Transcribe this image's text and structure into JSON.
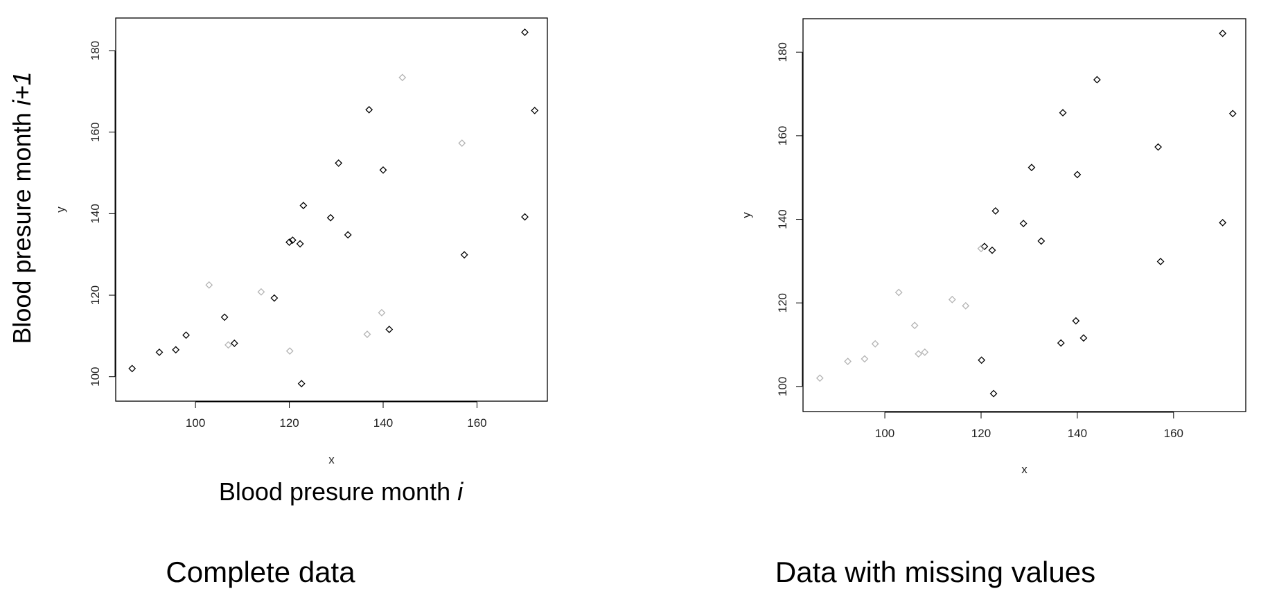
{
  "annotations": {
    "ylabel_prefix": "Blood presure month ",
    "ylabel_italic": "i+1",
    "xlabel_prefix": "Blood presure month ",
    "xlabel_italic": "i"
  },
  "colors": {
    "observed": "#000000",
    "missing": "#b4b4b4"
  },
  "chart_data": [
    {
      "type": "scatter",
      "caption": "Complete data",
      "xlabel": "x",
      "ylabel": "y",
      "xlim": [
        83,
        175
      ],
      "ylim": [
        94,
        188
      ],
      "x_ticks": [
        100,
        120,
        140,
        160
      ],
      "y_ticks": [
        100,
        120,
        140,
        160,
        180
      ],
      "grid": false,
      "series": [
        {
          "points": [
            {
              "x": 86.5,
              "y": 102
            },
            {
              "x": 92.3,
              "y": 106
            },
            {
              "x": 95.8,
              "y": 106.6
            },
            {
              "x": 98,
              "y": 110.2
            },
            {
              "x": 106.2,
              "y": 114.6
            },
            {
              "x": 108.3,
              "y": 108.2
            },
            {
              "x": 116.8,
              "y": 119.3
            },
            {
              "x": 120,
              "y": 133
            },
            {
              "x": 120.7,
              "y": 133.5
            },
            {
              "x": 122.3,
              "y": 132.6
            },
            {
              "x": 123,
              "y": 142
            },
            {
              "x": 122.6,
              "y": 98.3
            },
            {
              "x": 128.8,
              "y": 139
            },
            {
              "x": 130.5,
              "y": 152.4
            },
            {
              "x": 132.5,
              "y": 134.8
            },
            {
              "x": 137,
              "y": 165.5
            },
            {
              "x": 140,
              "y": 150.7
            },
            {
              "x": 141.3,
              "y": 111.6
            },
            {
              "x": 157.3,
              "y": 129.9
            },
            {
              "x": 170.2,
              "y": 184.5
            },
            {
              "x": 170.2,
              "y": 139.2
            },
            {
              "x": 172.3,
              "y": 165.3
            }
          ]
        },
        {
          "points": [
            {
              "x": 102.9,
              "y": 122.5
            },
            {
              "x": 107,
              "y": 107.8
            },
            {
              "x": 114,
              "y": 120.8
            },
            {
              "x": 120.1,
              "y": 106.3
            },
            {
              "x": 136.6,
              "y": 110.4
            },
            {
              "x": 139.7,
              "y": 115.7
            },
            {
              "x": 144.1,
              "y": 173.4
            },
            {
              "x": 156.8,
              "y": 157.3
            }
          ]
        }
      ]
    },
    {
      "type": "scatter",
      "caption": "Data with missing values",
      "xlabel": "x",
      "ylabel": "y",
      "xlim": [
        83,
        175
      ],
      "ylim": [
        94,
        188
      ],
      "x_ticks": [
        100,
        120,
        140,
        160
      ],
      "y_ticks": [
        100,
        120,
        140,
        160,
        180
      ],
      "grid": false,
      "series": [
        {
          "points": [
            {
              "x": 120.1,
              "y": 106.3
            },
            {
              "x": 120.7,
              "y": 133.5
            },
            {
              "x": 122.3,
              "y": 132.6
            },
            {
              "x": 123,
              "y": 142
            },
            {
              "x": 122.6,
              "y": 98.3
            },
            {
              "x": 128.8,
              "y": 139
            },
            {
              "x": 130.5,
              "y": 152.4
            },
            {
              "x": 132.5,
              "y": 134.8
            },
            {
              "x": 136.6,
              "y": 110.4
            },
            {
              "x": 137,
              "y": 165.5
            },
            {
              "x": 139.7,
              "y": 115.7
            },
            {
              "x": 140,
              "y": 150.7
            },
            {
              "x": 141.3,
              "y": 111.6
            },
            {
              "x": 144.1,
              "y": 173.4
            },
            {
              "x": 156.8,
              "y": 157.3
            },
            {
              "x": 157.3,
              "y": 129.9
            },
            {
              "x": 170.2,
              "y": 184.5
            },
            {
              "x": 170.2,
              "y": 139.2
            },
            {
              "x": 172.3,
              "y": 165.3
            }
          ]
        },
        {
          "points": [
            {
              "x": 86.5,
              "y": 102
            },
            {
              "x": 92.3,
              "y": 106
            },
            {
              "x": 95.8,
              "y": 106.6
            },
            {
              "x": 98,
              "y": 110.2
            },
            {
              "x": 102.9,
              "y": 122.5
            },
            {
              "x": 106.2,
              "y": 114.6
            },
            {
              "x": 107,
              "y": 107.8
            },
            {
              "x": 108.3,
              "y": 108.2
            },
            {
              "x": 114,
              "y": 120.8
            },
            {
              "x": 116.8,
              "y": 119.3
            },
            {
              "x": 120,
              "y": 133
            }
          ]
        }
      ]
    }
  ]
}
